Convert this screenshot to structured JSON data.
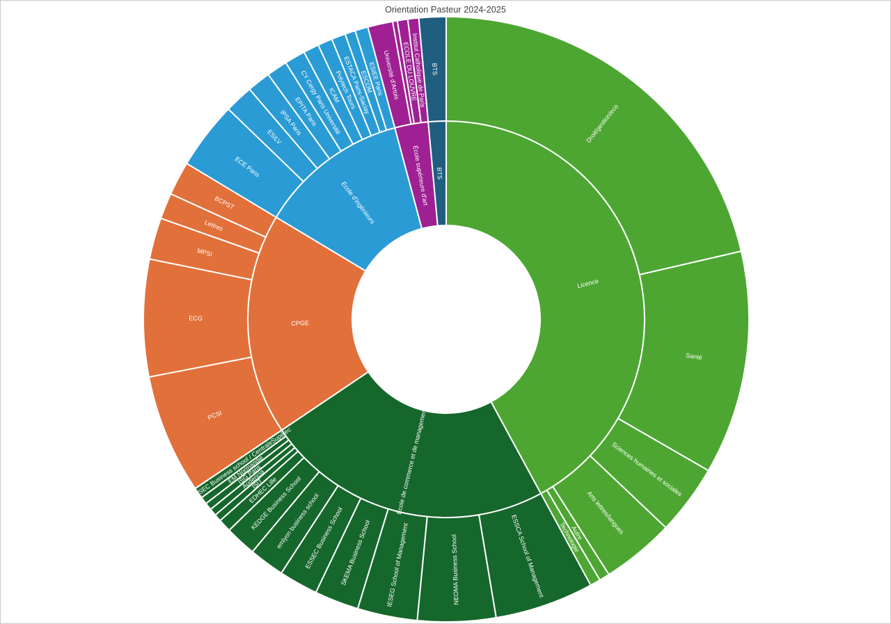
{
  "page": {
    "title": "Orientation Pasteur 2024-2025"
  },
  "chart_data": {
    "type": "sunburst",
    "title": "Orientation Pasteur 2024-2025",
    "rings": [
      "type de formation (anneau intérieur)",
      "filière / établissement (anneau extérieur)"
    ],
    "start_at": "top",
    "direction": "clockwise",
    "value_units": "angular share in degrees (of 360)",
    "segments": [
      {
        "label": "Licence",
        "color": "#4DA632",
        "value_deg": 151.5,
        "children": [
          {
            "label": "Droit/gestion/eco",
            "value_deg": 77
          },
          {
            "label": "Santé",
            "value_deg": 43
          },
          {
            "label": "Sciences humaines et sociales",
            "value_deg": 13.5
          },
          {
            "label": "Arts lettres/langues",
            "value_deg": 14
          },
          {
            "label": "Autre",
            "value_deg": 2
          },
          {
            "label": "Technologie",
            "value_deg": 2
          }
        ]
      },
      {
        "label": "École de commerce et de management",
        "color": "#16672C",
        "value_deg": 84.5,
        "children": [
          {
            "label": "ESSCA School of Management",
            "value_deg": 19
          },
          {
            "label": "NEOMA Business School",
            "value_deg": 15
          },
          {
            "label": "IESEG School of Management",
            "value_deg": 11.5
          },
          {
            "label": "SKEMA Business School",
            "value_deg": 8.5
          },
          {
            "label": "ESSEC Business School",
            "value_deg": 7.5
          },
          {
            "label": "emlyon business school",
            "value_deg": 6.8
          },
          {
            "label": "KEDGE Business School",
            "value_deg": 6
          },
          {
            "label": "EDHEC Lille",
            "value_deg": 2.5
          },
          {
            "label": "ISIT",
            "value_deg": 1.4
          },
          {
            "label": "Audencia",
            "value_deg": 1.4
          },
          {
            "label": "ISG Paris",
            "value_deg": 1.4
          },
          {
            "label": "EM Normandie",
            "value_deg": 1.4
          },
          {
            "label": "ESSEC Business school / CentraleSupélec",
            "value_deg": 2.1
          }
        ]
      },
      {
        "label": "CPGE",
        "color": "#E2703A",
        "value_deg": 65,
        "children": [
          {
            "label": "PCSI",
            "value_deg": 23
          },
          {
            "label": "ECG",
            "value_deg": 22.5
          },
          {
            "label": "MPSI",
            "value_deg": 8
          },
          {
            "label": "Lettres",
            "value_deg": 5
          },
          {
            "label": "BCPST",
            "value_deg": 6.5
          }
        ]
      },
      {
        "label": "École d'ingénieurs",
        "color": "#2A9BD5",
        "value_deg": 44,
        "children": [
          {
            "label": "ECE Paris",
            "value_deg": 13
          },
          {
            "label": "ESILV",
            "value_deg": 5.5
          },
          {
            "label": "IPSA Paris",
            "value_deg": 4.5
          },
          {
            "label": "EPITA Paris",
            "value_deg": 4
          },
          {
            "label": "CY Cergy Paris Université",
            "value_deg": 4
          },
          {
            "label": "ICAM",
            "value_deg": 3
          },
          {
            "label": "Polytech Tours",
            "value_deg": 2.8
          },
          {
            "label": "ESTACA Paris-Saclay",
            "value_deg": 2.7
          },
          {
            "label": "ESCOM",
            "value_deg": 2.0
          },
          {
            "label": "ESIEE Paris",
            "value_deg": 2.5
          }
        ]
      },
      {
        "label": "École supérieure d'art",
        "color": "#9E2093",
        "value_deg": 9.8,
        "children": [
          {
            "label": "Université d'Artois",
            "value_deg": 4.8
          },
          {
            "label": "",
            "value_deg": 0.9
          },
          {
            "label": "ECOLE DU LOUVRE",
            "value_deg": 2.0
          },
          {
            "label": "Institut Catholique de Paris",
            "value_deg": 2.1
          }
        ]
      },
      {
        "label": "BTS",
        "color": "#205E80",
        "value_deg": 5.2,
        "children": [
          {
            "label": "BTS",
            "value_deg": 5.2
          }
        ]
      }
    ]
  }
}
